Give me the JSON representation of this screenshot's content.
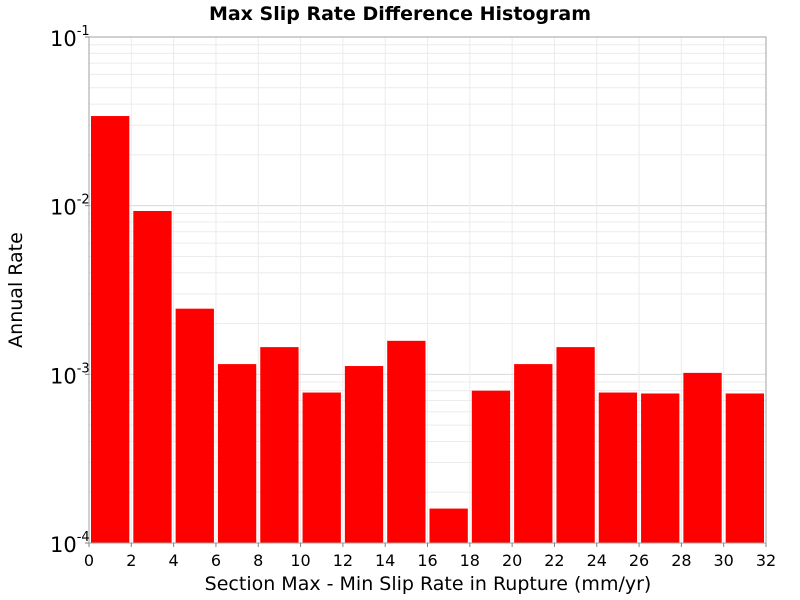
{
  "chart_data": {
    "type": "bar",
    "title": "Max Slip Rate Difference Histogram",
    "xlabel": "Section Max - Min Slip Rate in Rupture (mm/yr)",
    "ylabel": "Annual Rate",
    "xlim": [
      0,
      32
    ],
    "ylim": [
      0.0001,
      0.1
    ],
    "yscale": "log",
    "bin_width": 2,
    "x_ticks": [
      "0",
      "2",
      "4",
      "6",
      "8",
      "10",
      "12",
      "14",
      "16",
      "18",
      "20",
      "22",
      "24",
      "26",
      "28",
      "30",
      "32"
    ],
    "y_ticks": [
      {
        "base": "10",
        "exp": "-4"
      },
      {
        "base": "10",
        "exp": "-3"
      },
      {
        "base": "10",
        "exp": "-2"
      },
      {
        "base": "10",
        "exp": "-1"
      }
    ],
    "bins": [
      1,
      3,
      5,
      7,
      9,
      11,
      13,
      15,
      17,
      19,
      21,
      23,
      25,
      27,
      29,
      31
    ],
    "values": [
      0.034,
      0.0093,
      0.00245,
      0.00115,
      0.00145,
      0.00078,
      0.00112,
      0.00158,
      0.00016,
      0.0008,
      0.00115,
      0.00145,
      0.00078,
      0.00077,
      0.00102,
      0.00077
    ],
    "bar_color": "#ff0000",
    "grid": true,
    "legend": "none"
  }
}
